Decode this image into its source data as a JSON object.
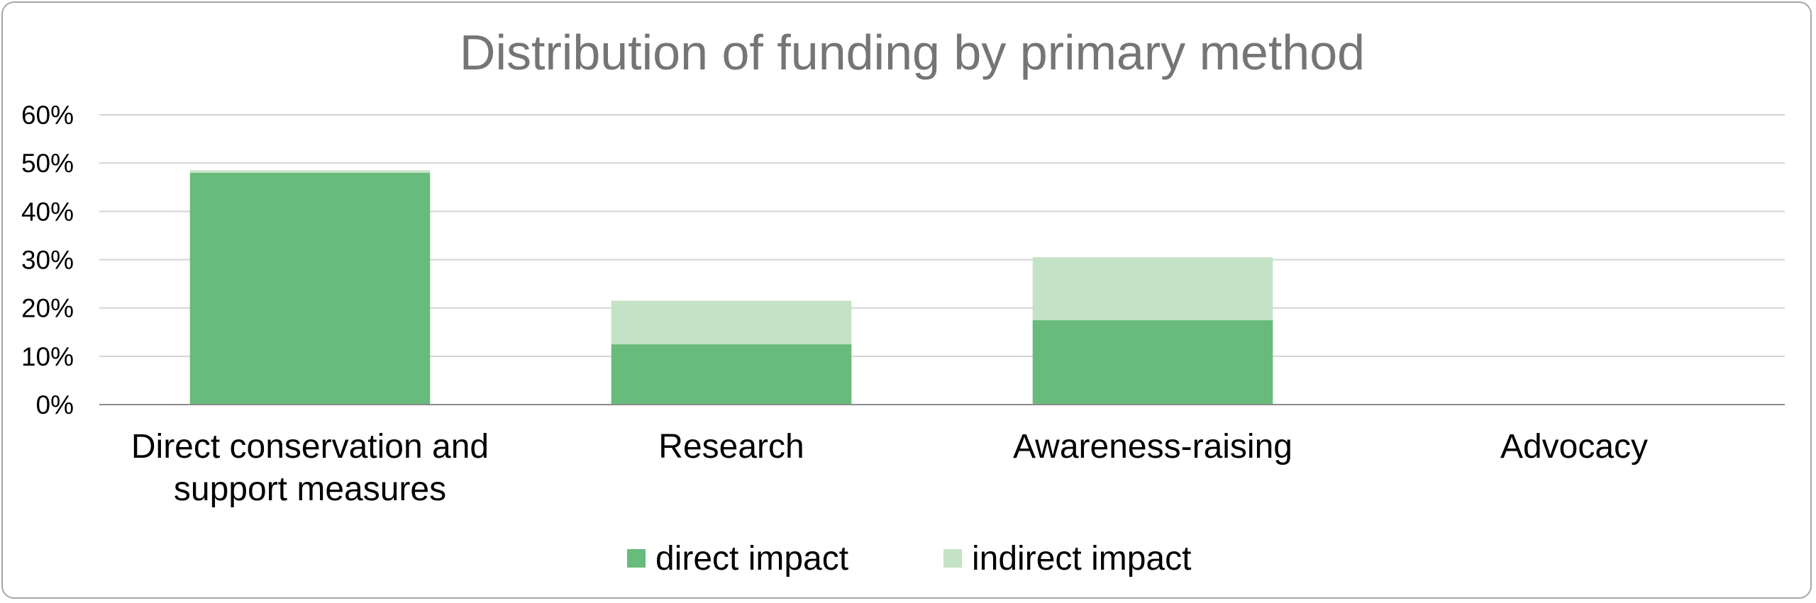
{
  "chart_data": {
    "type": "bar",
    "stacked": true,
    "title": "Distribution of funding by primary method",
    "categories": [
      [
        "Direct conservation and",
        "support measures"
      ],
      [
        "Research"
      ],
      [
        "Awareness-raising"
      ],
      [
        "Advocacy"
      ]
    ],
    "series": [
      {
        "name": "direct impact",
        "color": "#68bb7b",
        "values": [
          48,
          12.5,
          17.5,
          0
        ]
      },
      {
        "name": "indirect impact",
        "color": "#c4e2c5",
        "values": [
          0.5,
          9,
          13,
          0
        ]
      }
    ],
    "ylim": [
      0,
      60
    ],
    "yticks": [
      "0%",
      "10%",
      "20%",
      "30%",
      "40%",
      "50%",
      "60%"
    ],
    "grid": true,
    "legend": "bottom"
  }
}
